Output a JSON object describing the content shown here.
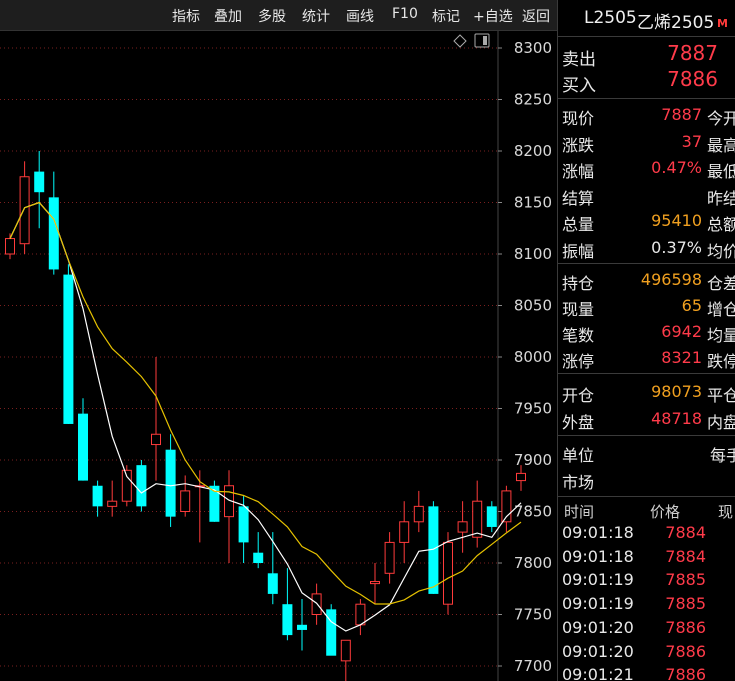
{
  "toolbar": {
    "buttons": [
      "指标",
      "叠加",
      "多股",
      "统计",
      "画线",
      "F10",
      "标记",
      "+自选",
      "返回"
    ]
  },
  "quote": {
    "code": "L2505",
    "name": "乙烯2505",
    "badge": "M",
    "ask_label": "卖出",
    "ask": "7887",
    "bid_label": "买入",
    "bid": "7886",
    "rows1": [
      {
        "label": "现价",
        "value": "7887",
        "label2": "今开",
        "color": "red"
      },
      {
        "label": "涨跌",
        "value": "37",
        "label2": "最高",
        "color": "red"
      },
      {
        "label": "涨幅",
        "value": "0.47%",
        "label2": "最低",
        "color": "red"
      },
      {
        "label": "结算",
        "value": "",
        "label2": "昨结",
        "color": "white"
      },
      {
        "label": "总量",
        "value": "95410",
        "label2": "总额",
        "color": "orange"
      },
      {
        "label": "振幅",
        "value": "0.37%",
        "label2": "均价",
        "color": "white"
      }
    ],
    "rows2": [
      {
        "label": "持仓",
        "value": "496598",
        "label2": "仓差",
        "color": "orange"
      },
      {
        "label": "现量",
        "value": "65",
        "label2": "增仓",
        "color": "orange"
      },
      {
        "label": "笔数",
        "value": "6942",
        "label2": "均量",
        "color": "red"
      },
      {
        "label": "涨停",
        "value": "8321",
        "label2": "跌停",
        "color": "red"
      }
    ],
    "rows3": [
      {
        "label": "开仓",
        "value": "98073",
        "label2": "平仓",
        "color": "orange"
      },
      {
        "label": "外盘",
        "value": "48718",
        "label2": "内盘",
        "color": "red"
      }
    ],
    "unit_label": "单位",
    "unit_value": "每手",
    "market_label": "市场",
    "ticks_header": {
      "time": "时间",
      "price": "价格",
      "vol": "现"
    },
    "ticks": [
      {
        "time": "09:01:18",
        "price": "7884"
      },
      {
        "time": "09:01:18",
        "price": "7884"
      },
      {
        "time": "09:01:19",
        "price": "7885"
      },
      {
        "time": "09:01:19",
        "price": "7885"
      },
      {
        "time": "09:01:20",
        "price": "7886"
      },
      {
        "time": "09:01:20",
        "price": "7886"
      },
      {
        "time": "09:01:21",
        "price": "7886"
      }
    ]
  },
  "chart_data": {
    "type": "candlestick",
    "y_ticks": [
      8300,
      8250,
      8200,
      8150,
      8100,
      8050,
      8000,
      7950,
      7900,
      7850,
      7800,
      7750,
      7700
    ],
    "ylim": [
      7692,
      8310
    ],
    "grid": true,
    "colors": {
      "up": "#ff3b3b",
      "down": "#00ffff",
      "ma_fast": "#ffffff",
      "ma_slow": "#e5c100"
    },
    "candles": [
      {
        "o": 8100,
        "h": 8120,
        "l": 8095,
        "c": 8115
      },
      {
        "o": 8110,
        "h": 8190,
        "l": 8100,
        "c": 8175
      },
      {
        "o": 8180,
        "h": 8200,
        "l": 8125,
        "c": 8160
      },
      {
        "o": 8155,
        "h": 8180,
        "l": 8080,
        "c": 8085
      },
      {
        "o": 8080,
        "h": 8090,
        "l": 7935,
        "c": 7935
      },
      {
        "o": 7945,
        "h": 7960,
        "l": 7880,
        "c": 7880
      },
      {
        "o": 7875,
        "h": 7880,
        "l": 7845,
        "c": 7855
      },
      {
        "o": 7855,
        "h": 7880,
        "l": 7845,
        "c": 7860
      },
      {
        "o": 7860,
        "h": 7895,
        "l": 7855,
        "c": 7890
      },
      {
        "o": 7895,
        "h": 7900,
        "l": 7850,
        "c": 7855
      },
      {
        "o": 7915,
        "h": 8000,
        "l": 7880,
        "c": 7925
      },
      {
        "o": 7910,
        "h": 7925,
        "l": 7835,
        "c": 7845
      },
      {
        "o": 7850,
        "h": 7885,
        "l": 7845,
        "c": 7870
      },
      {
        "o": 7875,
        "h": 7890,
        "l": 7820,
        "c": 7875
      },
      {
        "o": 7875,
        "h": 7880,
        "l": 7840,
        "c": 7840
      },
      {
        "o": 7845,
        "h": 7890,
        "l": 7800,
        "c": 7875
      },
      {
        "o": 7855,
        "h": 7865,
        "l": 7800,
        "c": 7820
      },
      {
        "o": 7810,
        "h": 7830,
        "l": 7795,
        "c": 7800
      },
      {
        "o": 7790,
        "h": 7830,
        "l": 7760,
        "c": 7770
      },
      {
        "o": 7760,
        "h": 7795,
        "l": 7725,
        "c": 7730
      },
      {
        "o": 7740,
        "h": 7765,
        "l": 7715,
        "c": 7735
      },
      {
        "o": 7750,
        "h": 7780,
        "l": 7740,
        "c": 7770
      },
      {
        "o": 7755,
        "h": 7760,
        "l": 7715,
        "c": 7710
      },
      {
        "o": 7705,
        "h": 7720,
        "l": 7685,
        "c": 7725
      },
      {
        "o": 7740,
        "h": 7765,
        "l": 7730,
        "c": 7760
      },
      {
        "o": 7780,
        "h": 7800,
        "l": 7760,
        "c": 7782
      },
      {
        "o": 7790,
        "h": 7830,
        "l": 7780,
        "c": 7820
      },
      {
        "o": 7820,
        "h": 7860,
        "l": 7800,
        "c": 7840
      },
      {
        "o": 7840,
        "h": 7870,
        "l": 7830,
        "c": 7855
      },
      {
        "o": 7855,
        "h": 7860,
        "l": 7770,
        "c": 7770
      },
      {
        "o": 7760,
        "h": 7830,
        "l": 7750,
        "c": 7820
      },
      {
        "o": 7830,
        "h": 7860,
        "l": 7810,
        "c": 7840
      },
      {
        "o": 7825,
        "h": 7880,
        "l": 7815,
        "c": 7860
      },
      {
        "o": 7855,
        "h": 7860,
        "l": 7830,
        "c": 7835
      },
      {
        "o": 7840,
        "h": 7875,
        "l": 7830,
        "c": 7870
      },
      {
        "o": 7880,
        "h": 7895,
        "l": 7870,
        "c": 7887
      }
    ]
  }
}
